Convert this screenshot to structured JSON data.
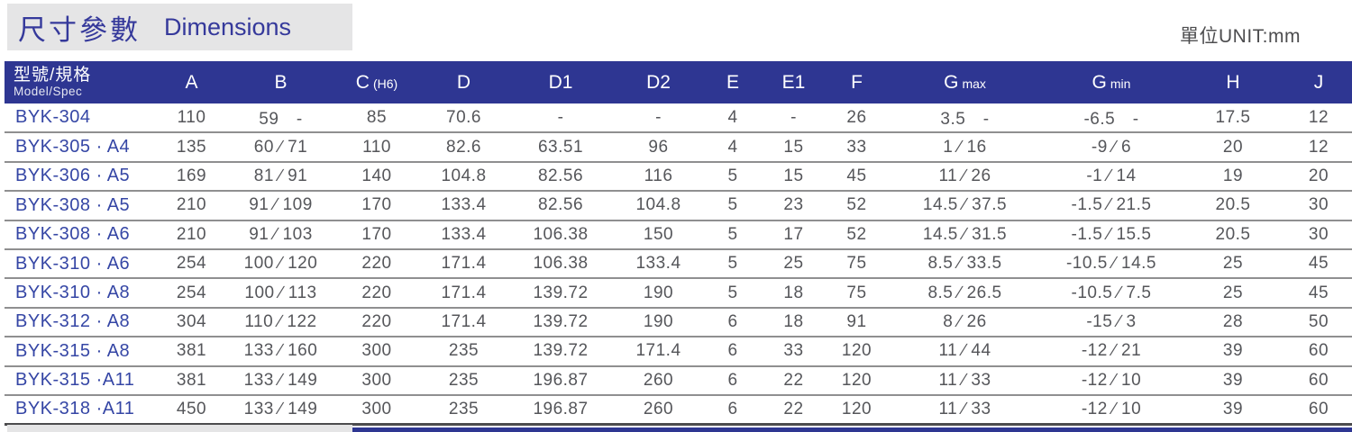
{
  "page": {
    "title_zh": "尺寸參數",
    "title_en": "Dimensions",
    "unit_label": "單位UNIT:mm"
  },
  "colors": {
    "header_bg": "#2e3692",
    "title_text": "#35399b",
    "model_text": "#3546a5",
    "body_text": "#55565a",
    "title_bar_bg": "#e5e5e6"
  },
  "table": {
    "header": {
      "model_zh": "型號/規格",
      "model_en": "Model/Spec",
      "columns": [
        {
          "key": "a",
          "main": "A",
          "sub": ""
        },
        {
          "key": "b",
          "main": "B",
          "sub": ""
        },
        {
          "key": "c",
          "main": "C",
          "sub": "(H6)"
        },
        {
          "key": "d",
          "main": "D",
          "sub": ""
        },
        {
          "key": "d1",
          "main": "D1",
          "sub": ""
        },
        {
          "key": "d2",
          "main": "D2",
          "sub": ""
        },
        {
          "key": "e",
          "main": "E",
          "sub": ""
        },
        {
          "key": "e1",
          "main": "E1",
          "sub": ""
        },
        {
          "key": "f",
          "main": "F",
          "sub": ""
        },
        {
          "key": "gmax",
          "main": "G",
          "sub": "max"
        },
        {
          "key": "gmin",
          "main": "G",
          "sub": "min"
        },
        {
          "key": "h",
          "main": "H",
          "sub": ""
        },
        {
          "key": "j",
          "main": "J",
          "sub": ""
        }
      ]
    },
    "rows": [
      {
        "model": "BYK-304",
        "values": [
          "110",
          "59　-",
          "85",
          "70.6",
          "-",
          "-",
          "4",
          "-",
          "26",
          "3.5　-",
          "-6.5　-",
          "17.5",
          "12"
        ]
      },
      {
        "model": "BYK-305 · A4",
        "values": [
          "135",
          "60 ∕ 71",
          "110",
          "82.6",
          "63.51",
          "96",
          "4",
          "15",
          "33",
          "1 ∕ 16",
          "-9 ∕ 6",
          "20",
          "12"
        ]
      },
      {
        "model": "BYK-306 · A5",
        "values": [
          "169",
          "81 ∕ 91",
          "140",
          "104.8",
          "82.56",
          "116",
          "5",
          "15",
          "45",
          "11 ∕ 26",
          "-1 ∕ 14",
          "19",
          "20"
        ]
      },
      {
        "model": "BYK-308 · A5",
        "values": [
          "210",
          "91 ∕ 109",
          "170",
          "133.4",
          "82.56",
          "104.8",
          "5",
          "23",
          "52",
          "14.5 ∕ 37.5",
          "-1.5 ∕ 21.5",
          "20.5",
          "30"
        ]
      },
      {
        "model": "BYK-308 · A6",
        "values": [
          "210",
          "91 ∕ 103",
          "170",
          "133.4",
          "106.38",
          "150",
          "5",
          "17",
          "52",
          "14.5 ∕ 31.5",
          "-1.5 ∕ 15.5",
          "20.5",
          "30"
        ]
      },
      {
        "model": "BYK-310 · A6",
        "values": [
          "254",
          "100 ∕ 120",
          "220",
          "171.4",
          "106.38",
          "133.4",
          "5",
          "25",
          "75",
          "8.5 ∕ 33.5",
          "-10.5 ∕ 14.5",
          "25",
          "45"
        ]
      },
      {
        "model": "BYK-310 · A8",
        "values": [
          "254",
          "100 ∕ 113",
          "220",
          "171.4",
          "139.72",
          "190",
          "5",
          "18",
          "75",
          "8.5 ∕ 26.5",
          "-10.5 ∕ 7.5",
          "25",
          "45"
        ]
      },
      {
        "model": "BYK-312 · A8",
        "values": [
          "304",
          "110 ∕ 122",
          "220",
          "171.4",
          "139.72",
          "190",
          "6",
          "18",
          "91",
          "8 ∕ 26",
          "-15 ∕ 3",
          "28",
          "50"
        ]
      },
      {
        "model": "BYK-315 · A8",
        "values": [
          "381",
          "133 ∕ 160",
          "300",
          "235",
          "139.72",
          "171.4",
          "6",
          "33",
          "120",
          "11 ∕ 44",
          "-12 ∕ 21",
          "39",
          "60"
        ]
      },
      {
        "model": "BYK-315 ·A11",
        "values": [
          "381",
          "133 ∕ 149",
          "300",
          "235",
          "196.87",
          "260",
          "6",
          "22",
          "120",
          "11 ∕ 33",
          "-12 ∕ 10",
          "39",
          "60"
        ]
      },
      {
        "model": "BYK-318 ·A11",
        "values": [
          "450",
          "133 ∕ 149",
          "300",
          "235",
          "196.87",
          "260",
          "6",
          "22",
          "120",
          "11 ∕ 33",
          "-12 ∕ 10",
          "39",
          "60"
        ]
      }
    ]
  }
}
